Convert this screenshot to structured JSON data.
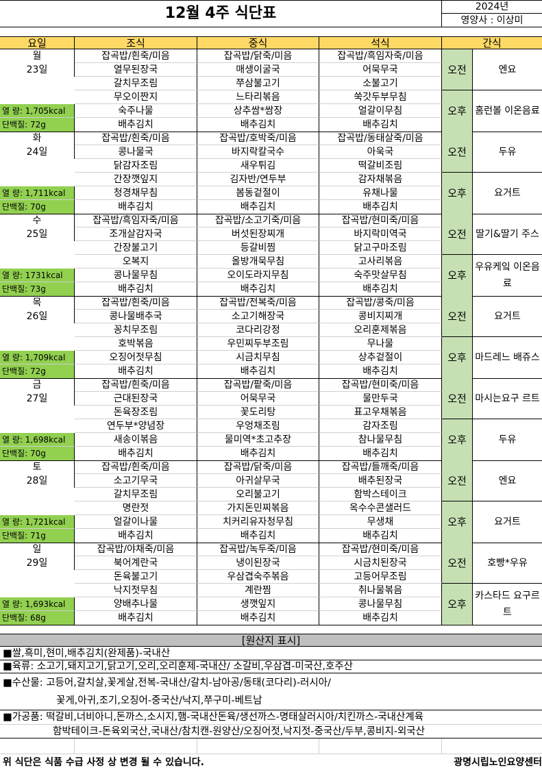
{
  "header": {
    "title": "12월 4주 식단표",
    "year": "2024년",
    "dietitian": "영양사 : 이상미"
  },
  "columns": [
    "요일",
    "조식",
    "중식",
    "석식",
    "간식"
  ],
  "colors": {
    "header": "#FFD966",
    "snack_time": "#C6E0B4",
    "nutrition": "#92D050",
    "origin_header": "#BFBFBF"
  },
  "days": [
    {
      "day": "월",
      "date": "23일",
      "calories": "열    량: 1,705kcal",
      "protein": "단백질: 72g",
      "breakfast": [
        "잡곡밥/흰죽/미음",
        "열무된장국",
        "갈치무조림",
        "무오이짠지",
        "숙주나물",
        "배추김치"
      ],
      "lunch": [
        "잡곡밥/닭죽/미음",
        "매생이굴국",
        "쭈삼불고기",
        "느타리볶음",
        "상추쌈*쌈장",
        "배추김치"
      ],
      "dinner": [
        "잡곡밥/흑임자죽/미음",
        "어묵무국",
        "소불고기",
        "쑥갓두부무침",
        "얼갈이무침",
        "배추김치"
      ],
      "snack_am_label": "오전",
      "snack_am": "엔요",
      "snack_pm_label": "오후",
      "snack_pm": "홈런볼 이온음료"
    },
    {
      "day": "화",
      "date": "24일",
      "calories": "열    량: 1,711kcal",
      "protein": "단백질: 70g",
      "breakfast": [
        "잡곡밥/흰죽/미음",
        "콩나물국",
        "닭감자조림",
        "간장깻잎지",
        "청경채무침",
        "배추김치"
      ],
      "lunch": [
        "잡곡밥/호박죽/미음",
        "바지락칼국수",
        "새우튀김",
        "김자반/연두부",
        "봄동겉절이",
        "배추김치"
      ],
      "dinner": [
        "잡곡밥/동태살죽/미음",
        "아욱국",
        "떡갈비조림",
        "감자채볶음",
        "유채나물",
        "배추김치"
      ],
      "snack_am_label": "오전",
      "snack_am": "두유",
      "snack_pm_label": "오후",
      "snack_pm": "요거트"
    },
    {
      "day": "수",
      "date": "25일",
      "calories": "열    량: 1731kcal",
      "protein": "단백질: 73g",
      "breakfast": [
        "잡곡밥/흑임자죽/미음",
        "조개살감자국",
        "간장불고기",
        "오복지",
        "콩나물무침",
        "배추김치"
      ],
      "lunch": [
        "잡곡밥/소고기죽/미음",
        "버섯된장찌개",
        "등갈비찜",
        "올방개묵무침",
        "오이도라지무침",
        "배추김치"
      ],
      "dinner": [
        "잡곡밥/현미죽/미음",
        "바지락미역국",
        "닭고구마조림",
        "고사리볶음",
        "숙주맛살무침",
        "배추김치"
      ],
      "snack_am_label": "오전",
      "snack_am": "딸기&딸기 주스",
      "snack_pm_label": "오후",
      "snack_pm": "우유케잌 이온음료"
    },
    {
      "day": "목",
      "date": "26일",
      "calories": "열    량: 1,709kcal",
      "protein": "단백질: 72g",
      "breakfast": [
        "잡곡밥/흰죽/미음",
        "콩나물배추국",
        "꽁치무조림",
        "호박볶음",
        "오징어젓무침",
        "배추김치"
      ],
      "lunch": [
        "잡곡밥/전복죽/미음",
        "소고기해장국",
        "코다리강정",
        "우민찌두부조림",
        "시금치무침",
        "배추김치"
      ],
      "dinner": [
        "잡곡밥/콩죽/미음",
        "콩비지찌개",
        "오리훈제볶음",
        "무나물",
        "상추겉절이",
        "배추김치"
      ],
      "snack_am_label": "오전",
      "snack_am": "요거트",
      "snack_pm_label": "오후",
      "snack_pm": "마드레느 배쥬스"
    },
    {
      "day": "금",
      "date": "27일",
      "calories": "열    량: 1,698kcal",
      "protein": "단백질: 70g",
      "breakfast": [
        "잡곡밥/흰죽/미음",
        "근대된장국",
        "돈육장조림",
        "연두부*양념장",
        "새송이볶음",
        "배추김치"
      ],
      "lunch": [
        "잡곡밥/팥죽/미음",
        "어묵무국",
        "꽃도리탕",
        "우엉채조림",
        "물미역*초고추장",
        "배추김치"
      ],
      "dinner": [
        "잡곡밥/현미죽/미음",
        "물만두국",
        "표고우채볶음",
        "감자조림",
        "참나물무침",
        "배추김치"
      ],
      "snack_am_label": "오전",
      "snack_am": "마시는요구 르트",
      "snack_pm_label": "오후",
      "snack_pm": "두유"
    },
    {
      "day": "토",
      "date": "28일",
      "calories": "열    량: 1,721kcal",
      "protein": "단백질: 71g",
      "breakfast": [
        "잡곡밥/흰죽/미음",
        "소고기무국",
        "갈치무조림",
        "명란젓",
        "얼갈이나물",
        "배추김치"
      ],
      "lunch": [
        "잡곡밥/닭죽/미음",
        "아귀살무국",
        "오리불고기",
        "가지돈민찌볶음",
        "치커리유자청무침",
        "배추김치"
      ],
      "dinner": [
        "잡곡밥/들깨죽/미음",
        "배추된장국",
        "함박스테이크",
        "옥수수콘샐러드",
        "무생채",
        "배추김치"
      ],
      "snack_am_label": "오전",
      "snack_am": "엔요",
      "snack_pm_label": "오후",
      "snack_pm": "요거트"
    },
    {
      "day": "일",
      "date": "29일",
      "calories": "열    량: 1,693kcal",
      "protein": "단백질: 68g",
      "breakfast": [
        "잡곡밥/야채죽/미음",
        "북어계란국",
        "돈육불고기",
        "낙지젓무침",
        "양배추나물",
        "배추김치"
      ],
      "lunch": [
        "잡곡밥/녹두죽/미음",
        "냉이된장국",
        "우삼겹숙주볶음",
        "계란찜",
        "생깻잎지",
        "배추김치"
      ],
      "dinner": [
        "잡곡밥/현미죽/미음",
        "시금치된장국",
        "고등어무조림",
        "취나물볶음",
        "콩나물무침",
        "배추김치"
      ],
      "snack_am_label": "오전",
      "snack_am": "호빵*우유",
      "snack_pm_label": "오후",
      "snack_pm": "카스타드 요구르트"
    }
  ],
  "origin": {
    "title": "[원산지 표시]",
    "lines": [
      "■쌀,흑미,현미,배추김치(완제품)-국내산",
      "■육류: 소고기,돼지고기,닭고기,오리,오리훈제-국내산/ 소갈비,우삼겹-미국산,호주산",
      "■수산물: 고등어,갈치살,꽃게살,전복-국내산/갈치-남아공/동태(코다리)-러시아/",
      "꽃게,아귀,조기,오징어-중국산/낙지,쭈구미-베트남",
      "■가공품: 떡갈비,너비아니,돈까스,소시지,햄-국내산돈육/생선까스-명태살러시아/치킨까스-국내산계육",
      "함박테이크-돈육외국산,국내산/참치캔-원양산/오징어젓,낙지젓-중국산/두부,콩비지-외국산"
    ]
  },
  "footer": {
    "notice": "위 식단은 식품 수급 사정 상 변경 될 수 있습니다.",
    "facility": "광명시립노인요양센터"
  }
}
